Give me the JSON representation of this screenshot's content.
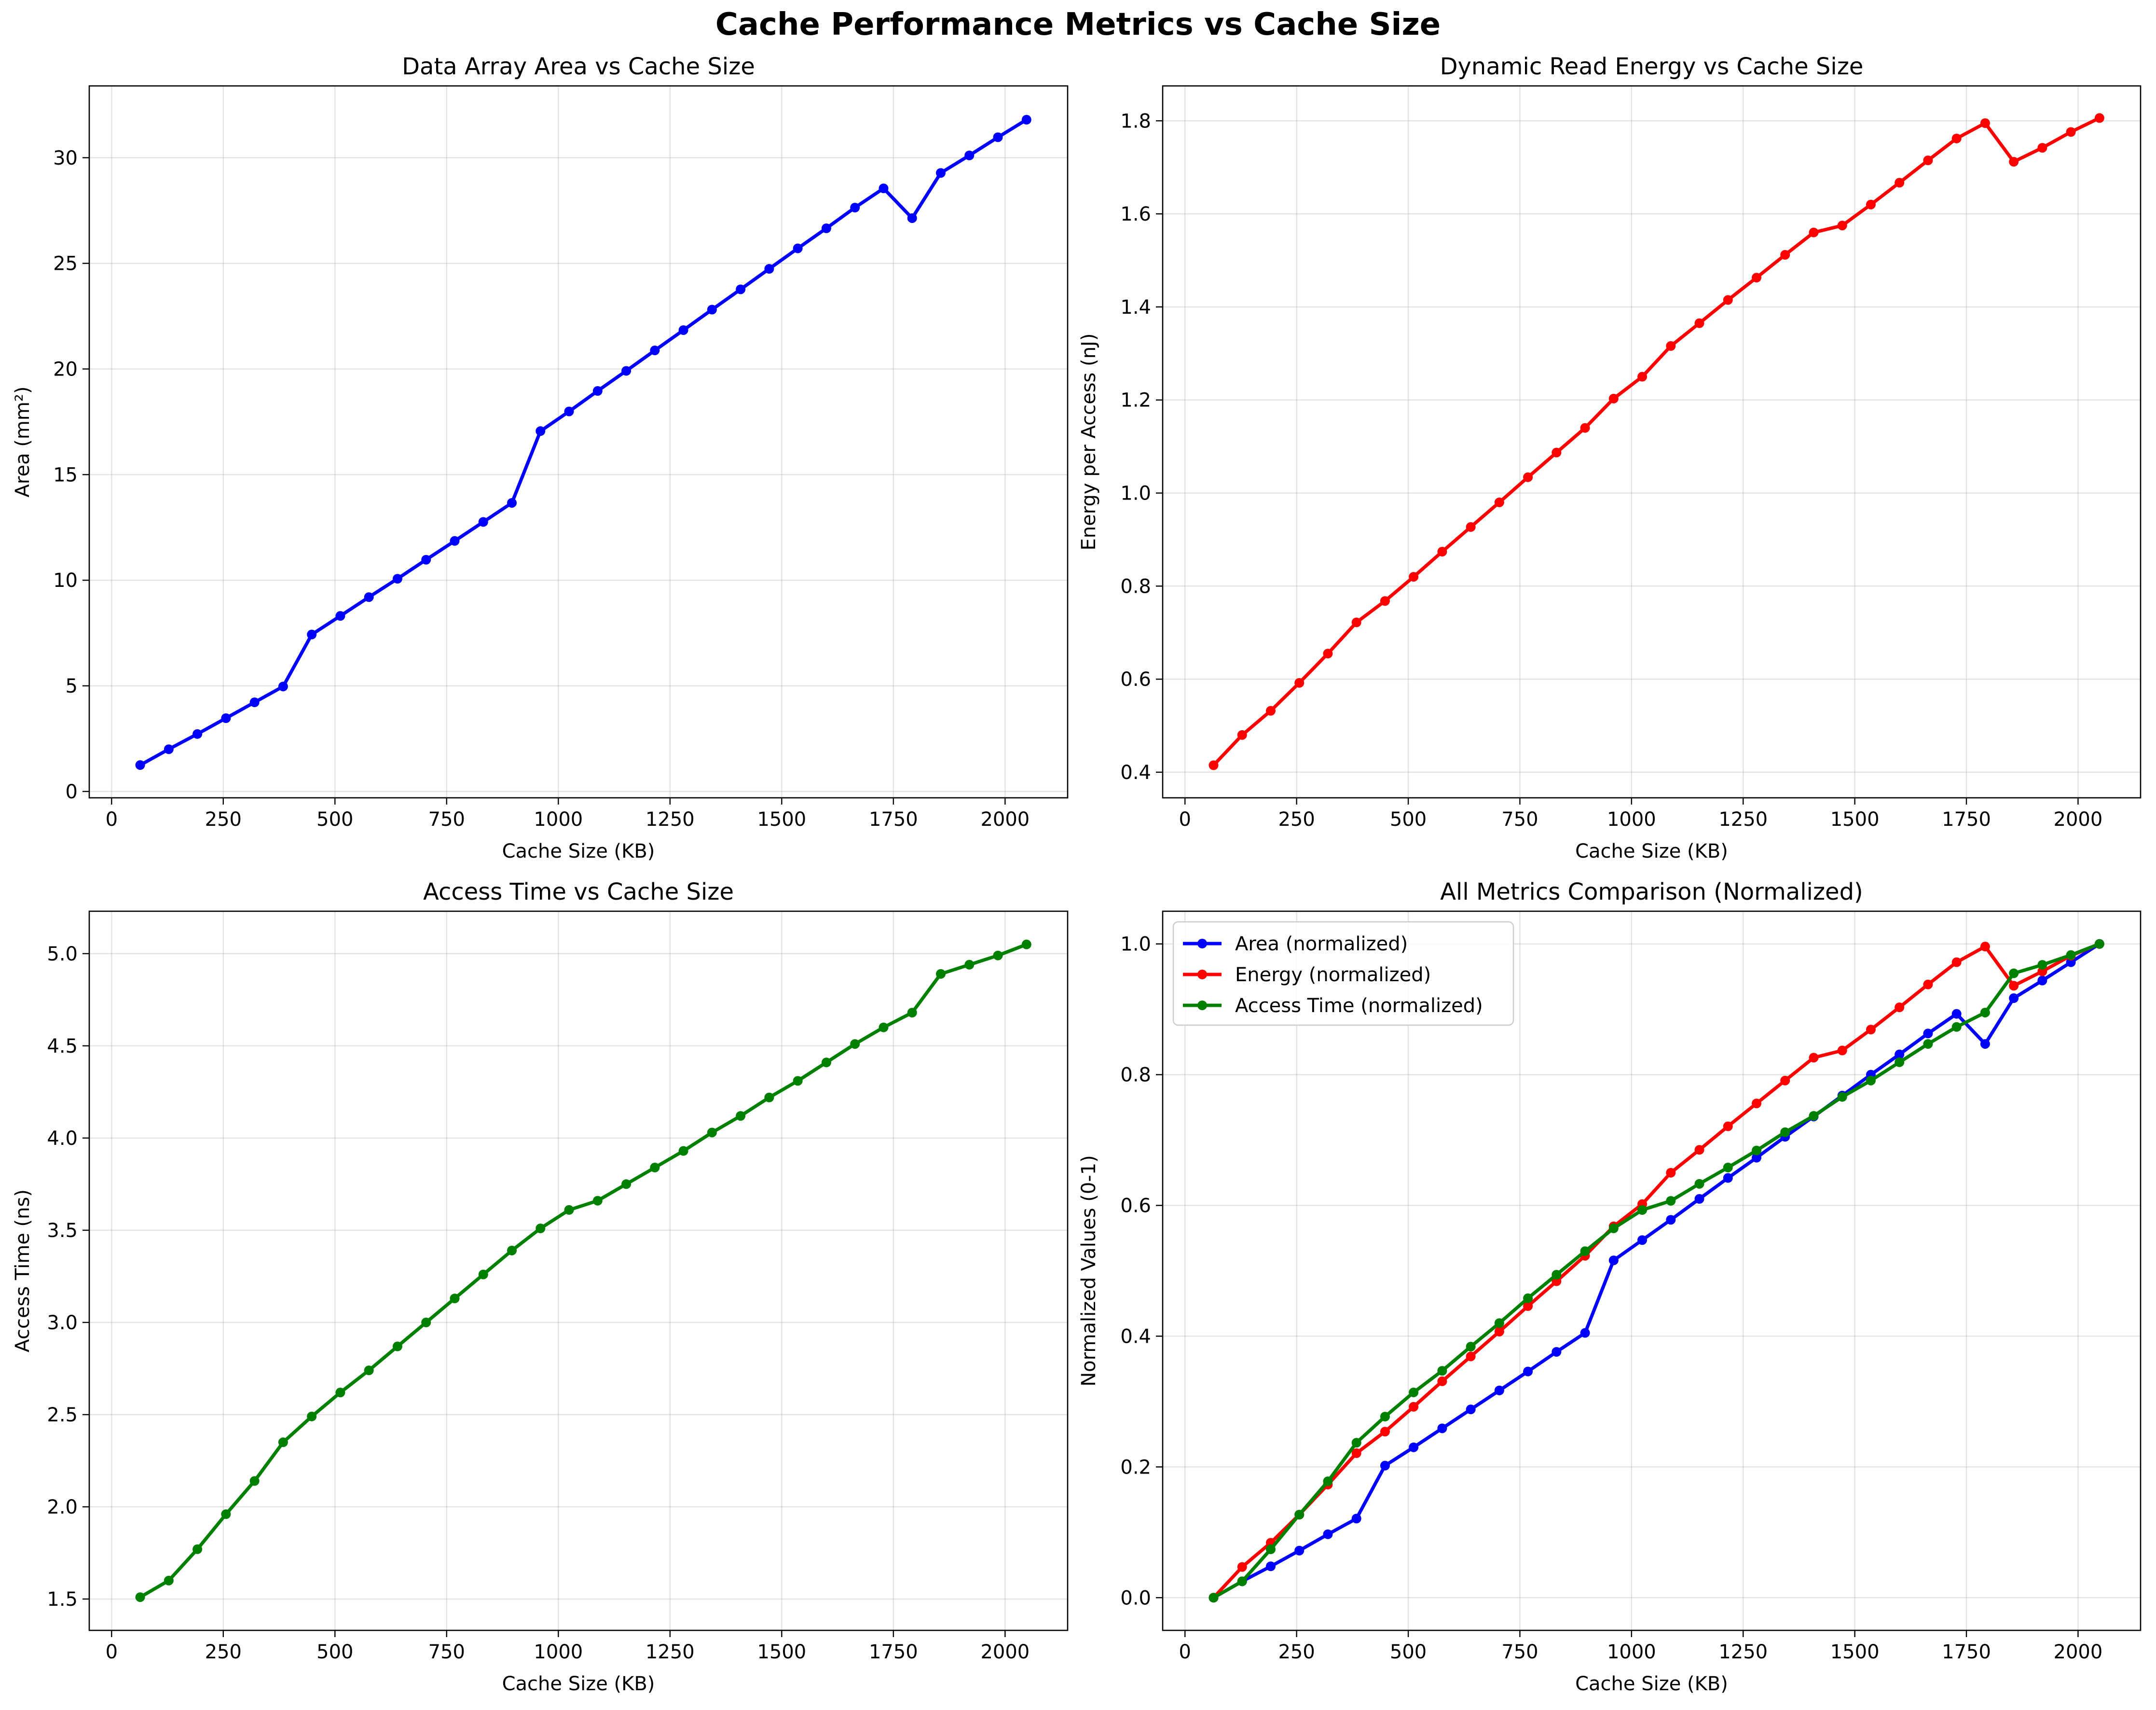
{
  "figure": {
    "suptitle": "Cache Performance Metrics vs Cache Size"
  },
  "chart_data": [
    {
      "type": "line",
      "title": "Data Array Area vs Cache Size",
      "xlabel": "Cache Size (KB)",
      "ylabel": "Area (mm²)",
      "xlim": [
        -50,
        2140
      ],
      "ylim": [
        -0.3,
        33.4
      ],
      "xticks": [
        0,
        250,
        500,
        750,
        1000,
        1250,
        1500,
        1750,
        2000
      ],
      "yticks": [
        0,
        5,
        10,
        15,
        20,
        25,
        30
      ],
      "grid": true,
      "legend": null,
      "x": [
        64,
        128,
        192,
        256,
        320,
        384,
        448,
        512,
        576,
        640,
        704,
        768,
        832,
        896,
        960,
        1024,
        1088,
        1152,
        1216,
        1280,
        1344,
        1408,
        1472,
        1536,
        1600,
        1664,
        1728,
        1792,
        1856,
        1920,
        1984,
        2048
      ],
      "series": [
        {
          "name": "",
          "color": "#0000ff",
          "values": [
            1.25,
            2.0,
            2.72,
            3.47,
            4.22,
            4.97,
            7.43,
            8.31,
            9.2,
            10.07,
            10.97,
            11.86,
            12.76,
            13.66,
            17.06,
            17.99,
            18.96,
            19.91,
            20.88,
            21.84,
            22.81,
            23.77,
            24.74,
            25.71,
            26.66,
            27.64,
            28.55,
            27.14,
            29.28,
            30.11,
            30.97,
            31.8
          ]
        }
      ]
    },
    {
      "type": "line",
      "title": "Dynamic Read Energy vs Cache Size",
      "xlabel": "Cache Size (KB)",
      "ylabel": "Energy per Access (nJ)",
      "xlim": [
        -50,
        2140
      ],
      "ylim": [
        0.345,
        1.875
      ],
      "xticks": [
        0,
        250,
        500,
        750,
        1000,
        1250,
        1500,
        1750,
        2000
      ],
      "yticks": [
        0.4,
        0.6,
        0.8,
        1.0,
        1.2,
        1.4,
        1.6,
        1.8
      ],
      "ytick_labels": [
        "0.4",
        "0.6",
        "0.8",
        "1.0",
        "1.2",
        "1.4",
        "1.6",
        "1.8"
      ],
      "grid": true,
      "legend": null,
      "x": [
        64,
        128,
        192,
        256,
        320,
        384,
        448,
        512,
        576,
        640,
        704,
        768,
        832,
        896,
        960,
        1024,
        1088,
        1152,
        1216,
        1280,
        1344,
        1408,
        1472,
        1536,
        1600,
        1664,
        1728,
        1792,
        1856,
        1920,
        1984,
        2048
      ],
      "series": [
        {
          "name": "",
          "color": "#ff0000",
          "values": [
            0.415,
            0.48,
            0.532,
            0.592,
            0.655,
            0.722,
            0.768,
            0.82,
            0.874,
            0.927,
            0.98,
            1.034,
            1.087,
            1.14,
            1.203,
            1.25,
            1.316,
            1.365,
            1.415,
            1.463,
            1.512,
            1.56,
            1.575,
            1.62,
            1.667,
            1.715,
            1.762,
            1.795,
            1.712,
            1.742,
            1.776,
            1.806
          ]
        }
      ]
    },
    {
      "type": "line",
      "title": "Access Time vs Cache Size",
      "xlabel": "Cache Size (KB)",
      "ylabel": "Access Time (ns)",
      "xlim": [
        -50,
        2140
      ],
      "ylim": [
        1.33,
        5.23
      ],
      "xticks": [
        0,
        250,
        500,
        750,
        1000,
        1250,
        1500,
        1750,
        2000
      ],
      "yticks": [
        1.5,
        2.0,
        2.5,
        3.0,
        3.5,
        4.0,
        4.5,
        5.0
      ],
      "ytick_labels": [
        "1.5",
        "2.0",
        "2.5",
        "3.0",
        "3.5",
        "4.0",
        "4.5",
        "5.0"
      ],
      "grid": true,
      "legend": null,
      "x": [
        64,
        128,
        192,
        256,
        320,
        384,
        448,
        512,
        576,
        640,
        704,
        768,
        832,
        896,
        960,
        1024,
        1088,
        1152,
        1216,
        1280,
        1344,
        1408,
        1472,
        1536,
        1600,
        1664,
        1728,
        1792,
        1856,
        1920,
        1984,
        2048
      ],
      "series": [
        {
          "name": "",
          "color": "#008000",
          "values": [
            1.51,
            1.6,
            1.77,
            1.96,
            2.14,
            2.35,
            2.49,
            2.62,
            2.74,
            2.87,
            3.0,
            3.13,
            3.26,
            3.39,
            3.51,
            3.61,
            3.66,
            3.75,
            3.84,
            3.93,
            4.03,
            4.12,
            4.22,
            4.31,
            4.41,
            4.51,
            4.6,
            4.68,
            4.89,
            4.94,
            4.99,
            5.05
          ]
        }
      ]
    },
    {
      "type": "line",
      "title": "All Metrics Comparison (Normalized)",
      "xlabel": "Cache Size (KB)",
      "ylabel": "Normalized Values (0-1)",
      "xlim": [
        -50,
        2140
      ],
      "ylim": [
        -0.05,
        1.05
      ],
      "xticks": [
        0,
        250,
        500,
        750,
        1000,
        1250,
        1500,
        1750,
        2000
      ],
      "yticks": [
        0.0,
        0.2,
        0.4,
        0.6,
        0.8,
        1.0
      ],
      "ytick_labels": [
        "0.0",
        "0.2",
        "0.4",
        "0.6",
        "0.8",
        "1.0"
      ],
      "grid": true,
      "legend": "top-left",
      "x": [
        64,
        128,
        192,
        256,
        320,
        384,
        448,
        512,
        576,
        640,
        704,
        768,
        832,
        896,
        960,
        1024,
        1088,
        1152,
        1216,
        1280,
        1344,
        1408,
        1472,
        1536,
        1600,
        1664,
        1728,
        1792,
        1856,
        1920,
        1984,
        2048
      ],
      "series": [
        {
          "name": "Area (normalized)",
          "color": "#0000ff",
          "values": [
            0.0,
            0.025,
            0.048,
            0.072,
            0.097,
            0.121,
            0.202,
            0.23,
            0.259,
            0.288,
            0.317,
            0.346,
            0.376,
            0.405,
            0.516,
            0.547,
            0.578,
            0.61,
            0.642,
            0.673,
            0.705,
            0.736,
            0.768,
            0.8,
            0.831,
            0.863,
            0.893,
            0.847,
            0.917,
            0.944,
            0.972,
            1.0
          ]
        },
        {
          "name": "Energy (normalized)",
          "color": "#ff0000",
          "values": [
            0.0,
            0.047,
            0.084,
            0.127,
            0.173,
            0.221,
            0.254,
            0.292,
            0.331,
            0.369,
            0.407,
            0.446,
            0.484,
            0.523,
            0.568,
            0.602,
            0.65,
            0.685,
            0.721,
            0.756,
            0.791,
            0.826,
            0.837,
            0.869,
            0.903,
            0.938,
            0.972,
            0.996,
            0.936,
            0.958,
            0.982,
            1.0
          ]
        },
        {
          "name": "Access Time (normalized)",
          "color": "#008000",
          "values": [
            0.0,
            0.025,
            0.074,
            0.127,
            0.178,
            0.237,
            0.277,
            0.314,
            0.347,
            0.384,
            0.42,
            0.458,
            0.494,
            0.53,
            0.565,
            0.593,
            0.607,
            0.633,
            0.658,
            0.684,
            0.712,
            0.737,
            0.766,
            0.791,
            0.819,
            0.847,
            0.873,
            0.895,
            0.955,
            0.968,
            0.983,
            1.0
          ]
        }
      ]
    }
  ]
}
